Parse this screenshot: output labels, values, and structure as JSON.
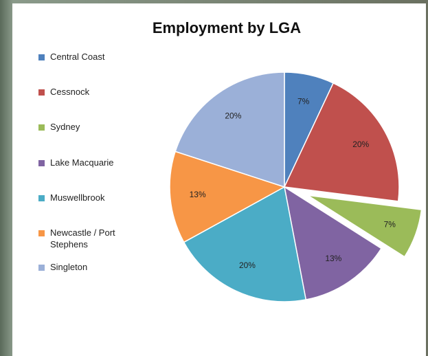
{
  "chart_data": {
    "type": "pie",
    "title": "Employment by LGA",
    "categories": [
      "Central Coast",
      "Cessnock",
      "Sydney",
      "Lake Macquarie",
      "Muswellbrook",
      "Newcastle / Port Stephens",
      "Singleton"
    ],
    "values": [
      7,
      20,
      7,
      13,
      20,
      13,
      20
    ],
    "value_labels": [
      "7%",
      "20%",
      "7%",
      "13%",
      "20%",
      "13%",
      "20%"
    ],
    "colors": [
      "#4f81bd",
      "#c0504d",
      "#9bbb59",
      "#8064a2",
      "#4bacc6",
      "#f79646",
      "#9bb0d8"
    ],
    "exploded": [
      false,
      false,
      true,
      false,
      false,
      false,
      false
    ],
    "legend": "left"
  }
}
